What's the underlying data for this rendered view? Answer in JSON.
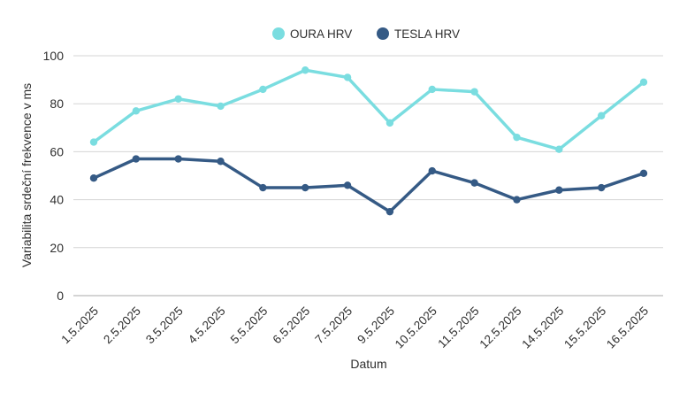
{
  "chart_data": {
    "type": "line",
    "title": "",
    "xlabel": "Datum",
    "ylabel": "Variabilita srdeční frekvence v ms",
    "ylim": [
      0,
      100
    ],
    "yticks": [
      0,
      20,
      40,
      60,
      80,
      100
    ],
    "grid": true,
    "legend_position": "top-center",
    "categories": [
      "1.5.2025",
      "2.5.2025",
      "3.5.2025",
      "4.5.2025",
      "5.5.2025",
      "6.5.2025",
      "7.5.2025",
      "9.5.2025",
      "10.5.2025",
      "11.5.2025",
      "12.5.2025",
      "14.5.2025",
      "15.5.2025",
      "16.5.2025"
    ],
    "series": [
      {
        "name": "OURA HRV",
        "color": "#7adde0",
        "values": [
          64,
          77,
          82,
          79,
          86,
          94,
          91,
          72,
          86,
          85,
          66,
          61,
          75,
          89
        ]
      },
      {
        "name": "TESLA HRV",
        "color": "#355a85",
        "values": [
          49,
          57,
          57,
          56,
          45,
          45,
          46,
          35,
          52,
          47,
          40,
          44,
          45,
          51
        ]
      }
    ]
  }
}
